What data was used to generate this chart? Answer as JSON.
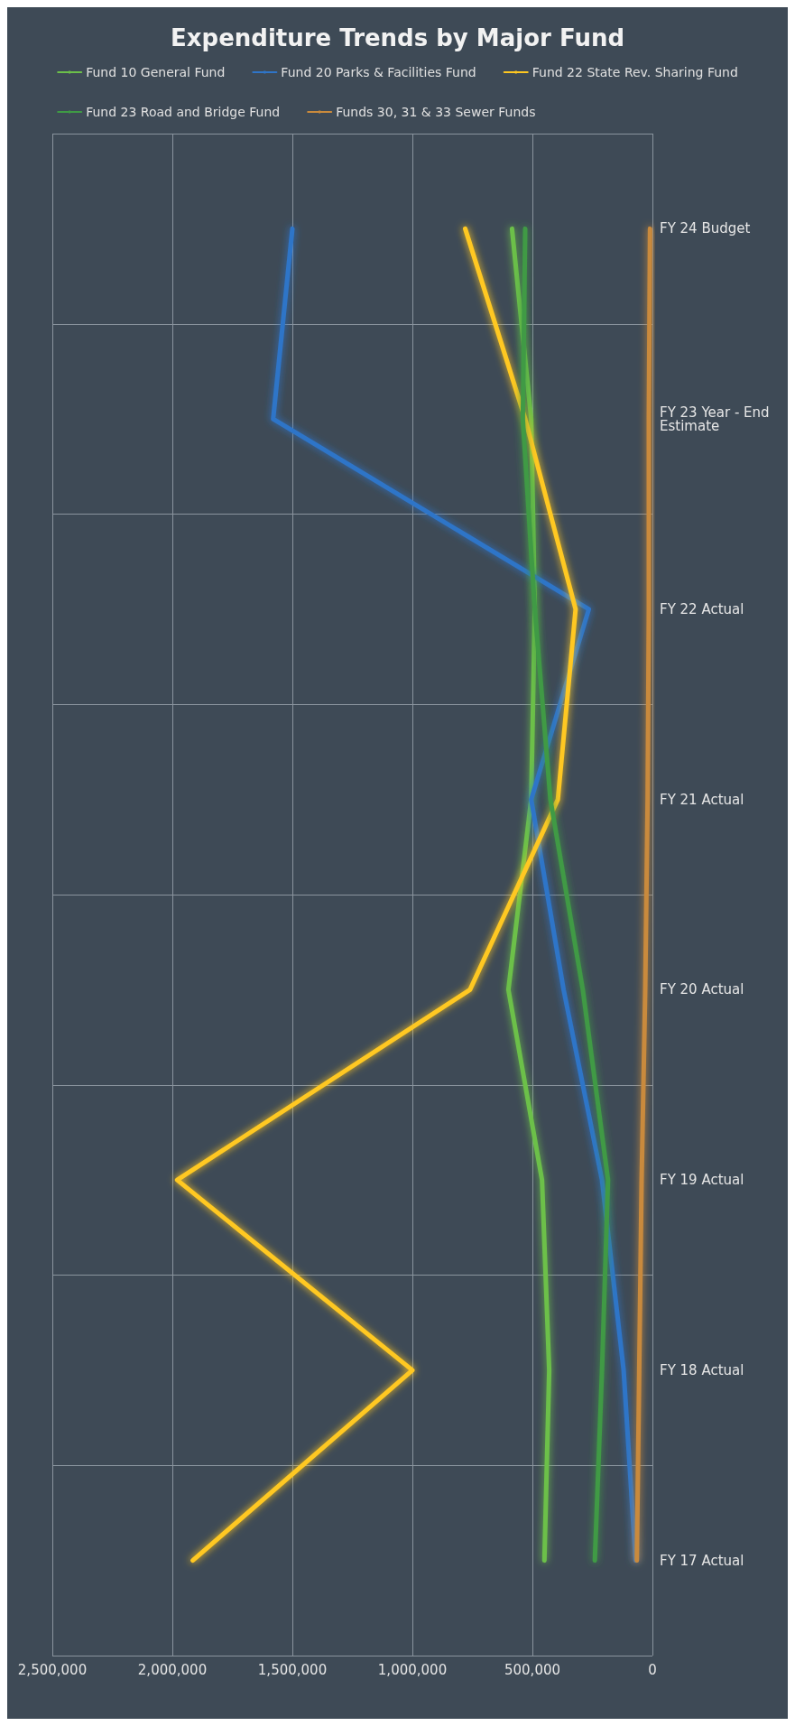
{
  "chart_data": {
    "type": "line",
    "title": "Expenditure Trends by Major Fund",
    "orientation": "horizontal",
    "categories": [
      "FY 24 Budget",
      "FY 23 Year - End Estimate",
      "FY 22 Actual",
      "FY 21 Actual",
      "FY 20 Actual",
      "FY 19 Actual",
      "FY 18 Actual",
      "FY 17 Actual"
    ],
    "series": [
      {
        "name": "Fund 10 General Fund",
        "color": "#6cc04a",
        "values": [
          585000,
          505000,
          490000,
          505000,
          600000,
          460000,
          430000,
          450000
        ]
      },
      {
        "name": "Fund 20 Parks & Facilities Fund",
        "color": "#2f75c8",
        "values": [
          1500000,
          1580000,
          265000,
          505000,
          370000,
          210000,
          120000,
          70000
        ]
      },
      {
        "name": "Fund 22 State Rev. Sharing Fund",
        "color": "#ffc820",
        "values": [
          780000,
          530000,
          320000,
          394000,
          760000,
          1980000,
          1000000,
          1915000
        ]
      },
      {
        "name": "Fund 23 Road and Bridge Fund",
        "color": "#3f9a45",
        "values": [
          530000,
          540000,
          490000,
          425000,
          290000,
          185000,
          210000,
          240000
        ]
      },
      {
        "name": "Funds 30, 31 & 33 Sewer Funds",
        "color": "#c98a3c",
        "values": [
          10000,
          15000,
          15000,
          20000,
          30000,
          45000,
          55000,
          65000
        ]
      }
    ],
    "xlim": [
      2500000,
      0
    ],
    "xticks": [
      0,
      {
        "value": 500000,
        "label": "500,000"
      },
      {
        "value": 1000000,
        "label": "1,000,000"
      },
      {
        "value": 1500000,
        "label": "1,500,000"
      },
      {
        "value": 2000000,
        "label": "2,000,000"
      },
      {
        "value": 2500000,
        "label": "2,500,000"
      }
    ],
    "grid": true,
    "legend": "top",
    "marker": "none",
    "line_style": "solid"
  }
}
